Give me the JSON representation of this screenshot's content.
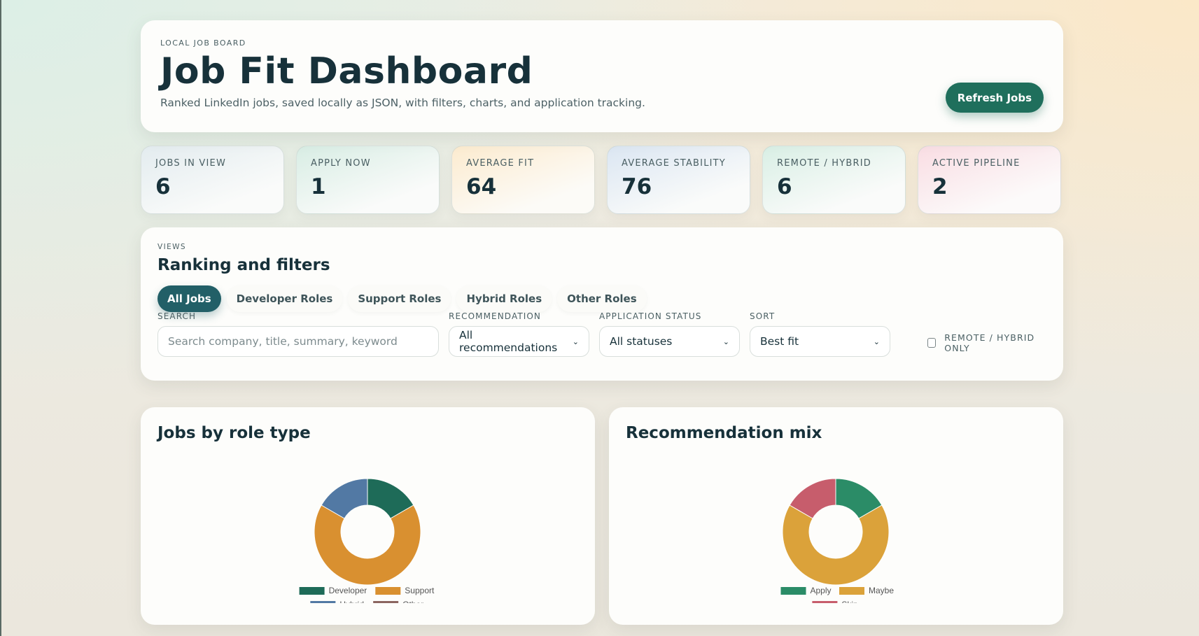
{
  "header": {
    "eyebrow": "Local Job Board",
    "title": "Job Fit Dashboard",
    "subtitle": "Ranked LinkedIn jobs, saved locally as JSON, with filters, charts, and application tracking.",
    "refresh_label": "Refresh Jobs"
  },
  "stats": [
    {
      "label": "Jobs in view",
      "value": "6"
    },
    {
      "label": "Apply now",
      "value": "1"
    },
    {
      "label": "Average fit",
      "value": "64"
    },
    {
      "label": "Average stability",
      "value": "76"
    },
    {
      "label": "Remote / Hybrid",
      "value": "6"
    },
    {
      "label": "Active pipeline",
      "value": "2"
    }
  ],
  "filters": {
    "eyebrow": "Views",
    "title": "Ranking and filters",
    "tabs": [
      "All Jobs",
      "Developer Roles",
      "Support Roles",
      "Hybrid Roles",
      "Other Roles"
    ],
    "active_tab": "All Jobs",
    "search": {
      "label": "Search",
      "placeholder": "Search company, title, summary, keyword",
      "value": ""
    },
    "recommendation": {
      "label": "Recommendation",
      "value": "All recommendations"
    },
    "status": {
      "label": "Application status",
      "value": "All statuses"
    },
    "sort": {
      "label": "Sort",
      "value": "Best fit"
    },
    "remote_only": {
      "label": "Remote / Hybrid only",
      "checked": false
    }
  },
  "charts": {
    "role_title": "Jobs by role type",
    "mix_title": "Recommendation mix"
  },
  "chart_data": [
    {
      "type": "pie",
      "title": "Jobs by role type",
      "categories": [
        "Developer",
        "Support",
        "Hybrid",
        "Other"
      ],
      "values": [
        1,
        4,
        1,
        0
      ],
      "colors": [
        "#1e6b58",
        "#d99030",
        "#5279a4",
        "#8b6560"
      ],
      "donut": true,
      "legend": "bottom"
    },
    {
      "type": "pie",
      "title": "Recommendation mix",
      "categories": [
        "Apply",
        "Maybe",
        "Skip"
      ],
      "values": [
        1,
        4,
        1
      ],
      "colors": [
        "#2b8c67",
        "#dba23a",
        "#c75d6c"
      ],
      "donut": true,
      "legend": "bottom"
    }
  ]
}
